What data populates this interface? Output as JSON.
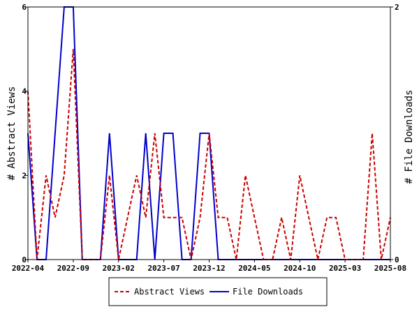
{
  "chart_data": {
    "type": "line",
    "x": [
      "2022-04",
      "2022-05",
      "2022-06",
      "2022-07",
      "2022-08",
      "2022-09",
      "2022-10",
      "2022-11",
      "2022-12",
      "2023-01",
      "2023-02",
      "2023-03",
      "2023-04",
      "2023-05",
      "2023-06",
      "2023-07",
      "2023-08",
      "2023-09",
      "2023-10",
      "2023-11",
      "2023-12",
      "2024-01",
      "2024-02",
      "2024-03",
      "2024-04",
      "2024-05",
      "2024-06",
      "2024-07",
      "2024-08",
      "2024-09",
      "2024-10",
      "2024-11",
      "2024-12",
      "2025-01",
      "2025-02",
      "2025-03",
      "2025-04",
      "2025-05",
      "2025-06",
      "2025-07",
      "2025-08"
    ],
    "x_tick_labels": [
      "2022-04",
      "2022-09",
      "2023-02",
      "2023-07",
      "2023-12",
      "2024-05",
      "2024-10",
      "2025-03",
      "2025-08"
    ],
    "y_left_ticks": [
      "0",
      "2",
      "4",
      "6"
    ],
    "y_right_ticks": [
      "0",
      "2"
    ],
    "ylim_left": [
      0,
      6
    ],
    "ylim_right": [
      0,
      2
    ],
    "ylabel_left": "# Abstract Views",
    "ylabel_right": "# File Downloads",
    "grid": false,
    "legend_position": "bottom",
    "series": [
      {
        "name": "Abstract Views",
        "axis": "left",
        "color": "#cc0000",
        "style": "dashed",
        "values": [
          4,
          0,
          2,
          1,
          2,
          5,
          0,
          0,
          0,
          2,
          0,
          1,
          2,
          1,
          3,
          1,
          1,
          1,
          0,
          1,
          3,
          1,
          1,
          0,
          2,
          1,
          0,
          0,
          1,
          0,
          2,
          1,
          0,
          1,
          1,
          0,
          0,
          0,
          3,
          0,
          1
        ]
      },
      {
        "name": "File Downloads",
        "axis": "right",
        "color": "#0000cc",
        "style": "solid",
        "values": [
          1,
          0,
          0,
          1,
          2,
          2,
          0,
          0,
          0,
          1,
          0,
          0,
          0,
          1,
          0,
          1,
          1,
          0,
          0,
          1,
          1,
          0,
          0,
          0,
          0,
          0,
          0,
          0,
          0,
          0,
          0,
          0,
          0,
          0,
          0,
          0,
          0,
          0,
          0,
          0,
          0
        ]
      }
    ]
  }
}
